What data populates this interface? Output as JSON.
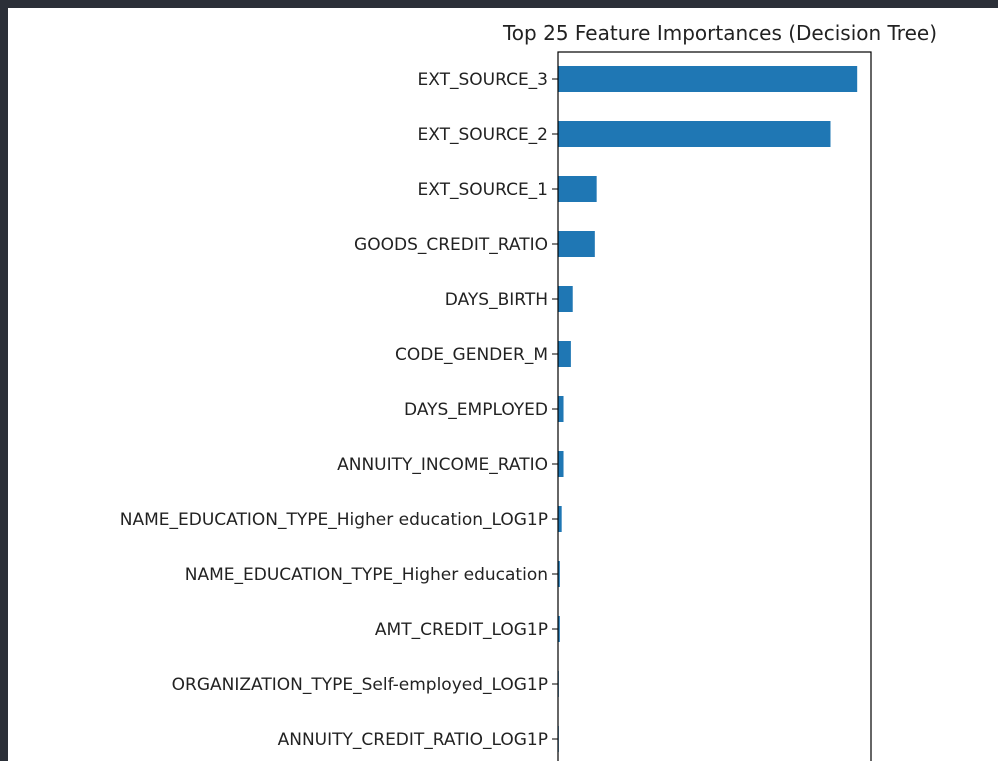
{
  "chart_data": {
    "type": "bar",
    "orientation": "horizontal",
    "title": "Top 25 Feature Importances (Decision Tree)",
    "xlabel": "",
    "ylabel": "",
    "bar_color": "#1f77b4",
    "xlim": [
      0,
      0.34
    ],
    "grid": false,
    "legend": "none",
    "categories": [
      "EXT_SOURCE_3",
      "EXT_SOURCE_2",
      "EXT_SOURCE_1",
      "GOODS_CREDIT_RATIO",
      "DAYS_BIRTH",
      "CODE_GENDER_M",
      "DAYS_EMPLOYED",
      "ANNUITY_INCOME_RATIO",
      "NAME_EDUCATION_TYPE_Higher education_LOG1P",
      "NAME_EDUCATION_TYPE_Higher education",
      "AMT_CREDIT_LOG1P",
      "ORGANIZATION_TYPE_Self-employed_LOG1P",
      "ANNUITY_CREDIT_RATIO_LOG1P"
    ],
    "values": [
      0.325,
      0.296,
      0.042,
      0.04,
      0.016,
      0.014,
      0.006,
      0.006,
      0.004,
      0.002,
      0.002,
      0.0008,
      0.0005
    ]
  }
}
